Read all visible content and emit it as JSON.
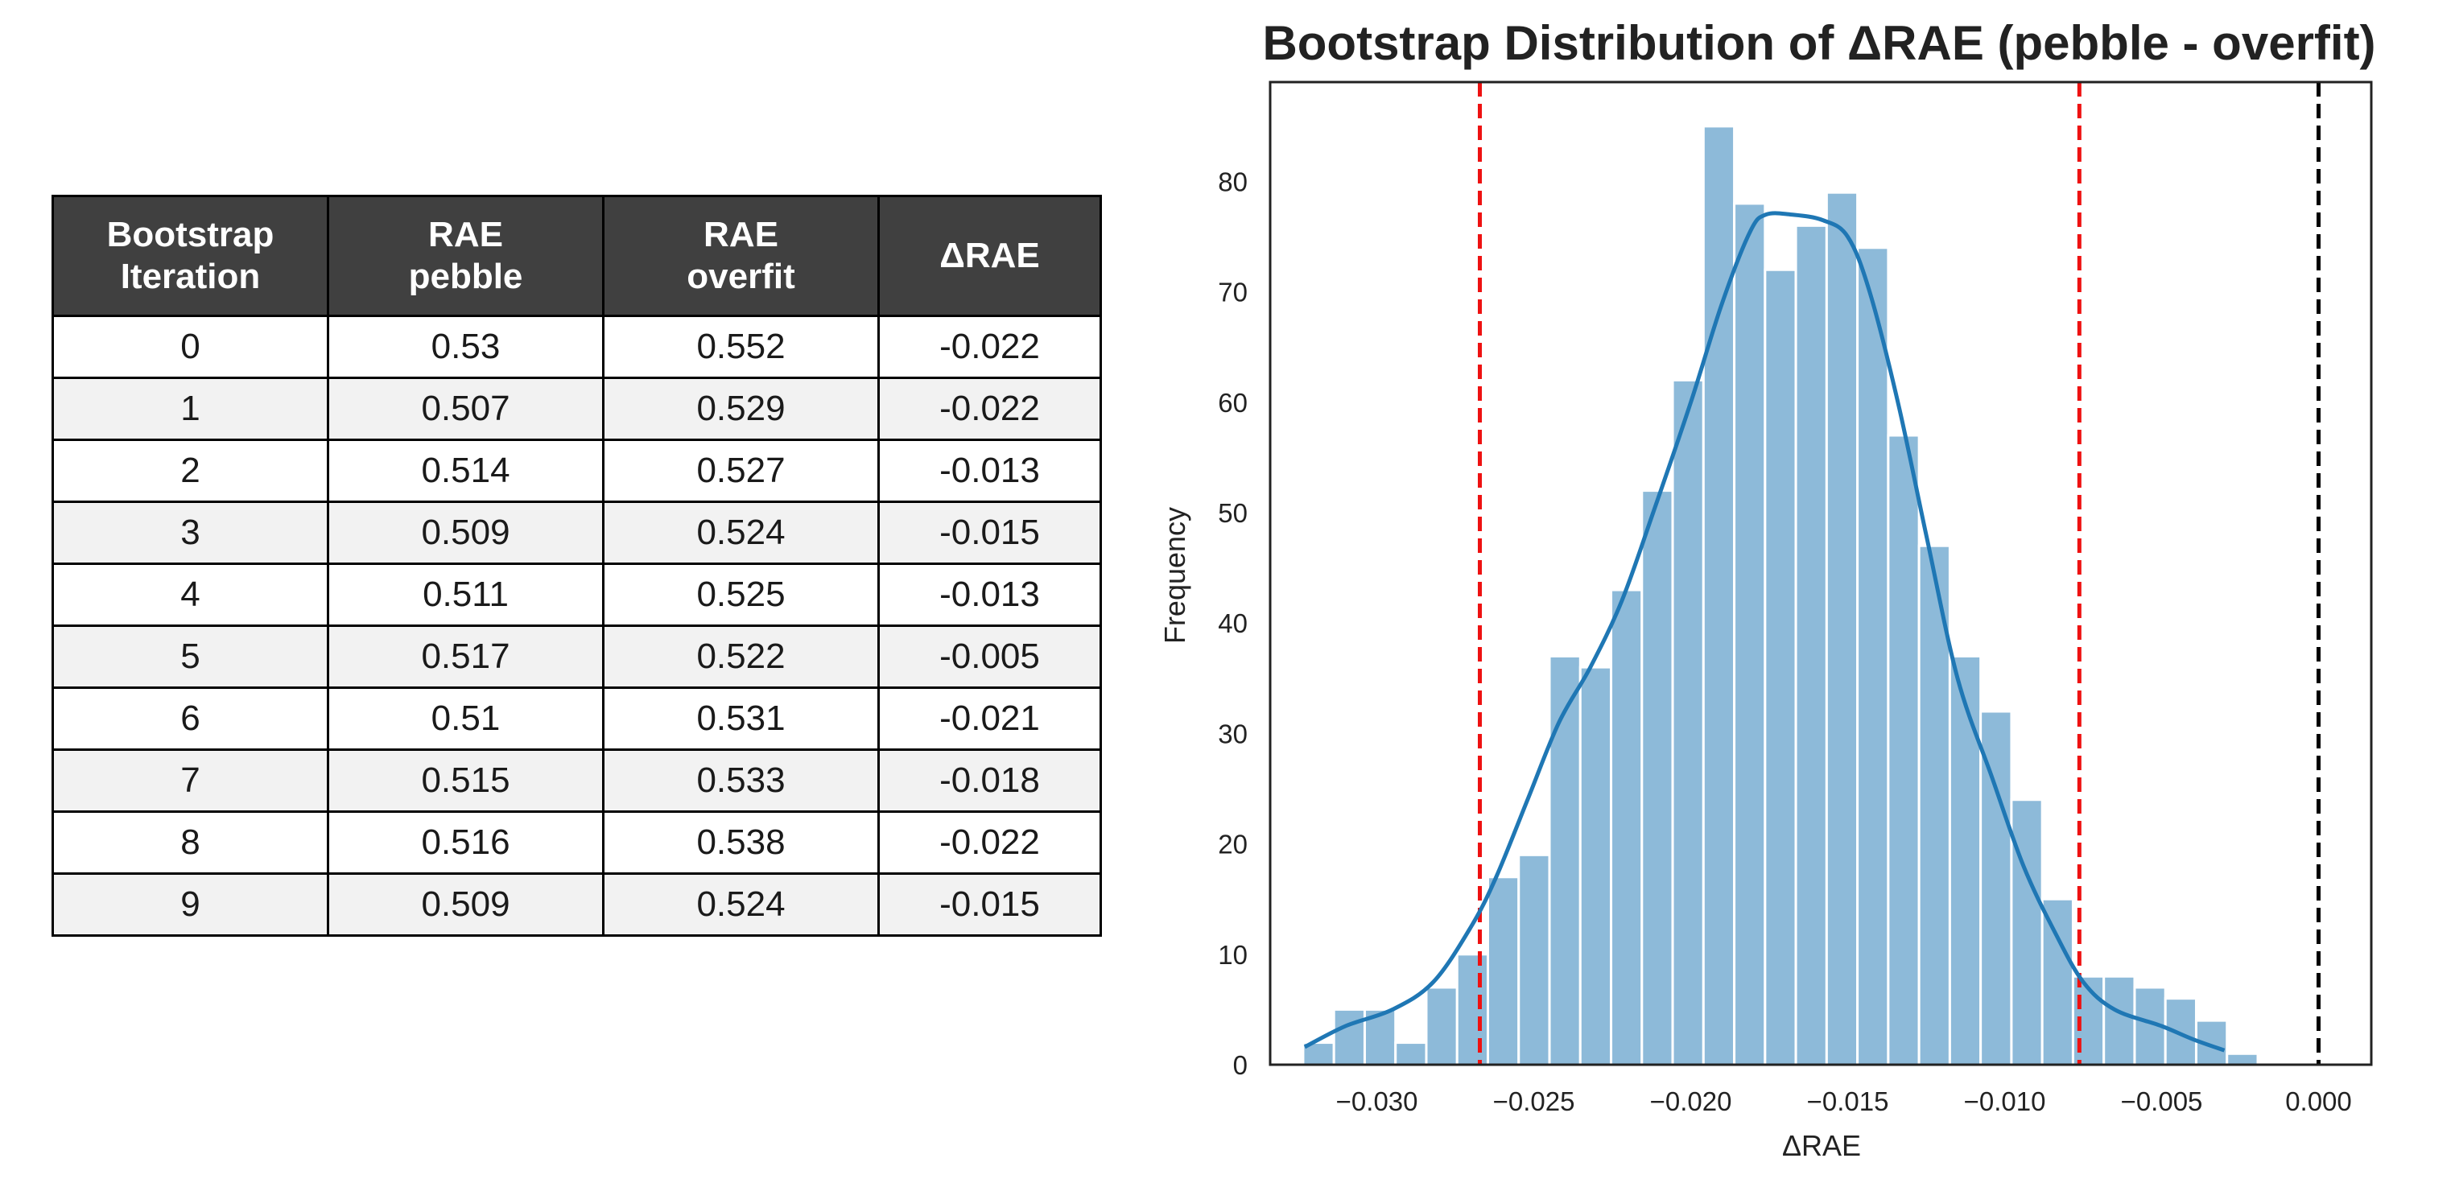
{
  "table": {
    "headers": [
      [
        "Bootstrap",
        "Iteration"
      ],
      [
        "RAE",
        "pebble"
      ],
      [
        "RAE",
        "overfit"
      ],
      [
        "ΔRAE"
      ]
    ],
    "rows": [
      [
        "0",
        "0.53",
        "0.552",
        "-0.022"
      ],
      [
        "1",
        "0.507",
        "0.529",
        "-0.022"
      ],
      [
        "2",
        "0.514",
        "0.527",
        "-0.013"
      ],
      [
        "3",
        "0.509",
        "0.524",
        "-0.015"
      ],
      [
        "4",
        "0.511",
        "0.525",
        "-0.013"
      ],
      [
        "5",
        "0.517",
        "0.522",
        "-0.005"
      ],
      [
        "6",
        "0.51",
        "0.531",
        "-0.021"
      ],
      [
        "7",
        "0.515",
        "0.533",
        "-0.018"
      ],
      [
        "8",
        "0.516",
        "0.538",
        "-0.022"
      ],
      [
        "9",
        "0.509",
        "0.524",
        "-0.015"
      ]
    ],
    "header_bg": "#404040",
    "header_text_color": "#ffffff",
    "stripe_color": "#f2f2f2"
  },
  "chart_data": {
    "type": "histogram",
    "title": "Bootstrap Distribution of ΔRAE (pebble - overfit)",
    "xlabel": "ΔRAE",
    "ylabel": "Frequency",
    "xlim": [
      -0.0334,
      0.00168
    ],
    "ylim": [
      0,
      89
    ],
    "xticks": [
      -0.03,
      -0.025,
      -0.02,
      -0.015,
      -0.01,
      -0.005,
      0.0
    ],
    "xtick_labels": [
      "−0.030",
      "−0.025",
      "−0.020",
      "−0.015",
      "−0.010",
      "−0.005",
      "0.000"
    ],
    "yticks": [
      0,
      10,
      20,
      30,
      40,
      50,
      60,
      70,
      80
    ],
    "bin_start": -0.03235,
    "bin_width": 0.0009811,
    "counts": [
      2,
      5,
      5,
      2,
      7,
      10,
      17,
      19,
      37,
      36,
      43,
      52,
      62,
      85,
      78,
      72,
      76,
      79,
      74,
      57,
      47,
      37,
      32,
      24,
      15,
      8,
      8,
      7,
      6,
      4,
      1
    ],
    "bar_color": "#8dbad9",
    "kde": {
      "color": "#1f77b4",
      "points": [
        [
          -0.0323,
          1.6
        ],
        [
          -0.031,
          3.5
        ],
        [
          -0.0295,
          5.0
        ],
        [
          -0.0282,
          7.5
        ],
        [
          -0.027,
          12.5
        ],
        [
          -0.0262,
          17.0
        ],
        [
          -0.0252,
          24.0
        ],
        [
          -0.0242,
          31.0
        ],
        [
          -0.0232,
          36.0
        ],
        [
          -0.0222,
          42.0
        ],
        [
          -0.0212,
          50.0
        ],
        [
          -0.02,
          60.0
        ],
        [
          -0.019,
          69.0
        ],
        [
          -0.0181,
          75.5
        ],
        [
          -0.0176,
          77.0
        ],
        [
          -0.0168,
          77.0
        ],
        [
          -0.0158,
          76.5
        ],
        [
          -0.015,
          75.0
        ],
        [
          -0.0143,
          70.0
        ],
        [
          -0.0134,
          60.0
        ],
        [
          -0.0125,
          48.0
        ],
        [
          -0.0115,
          35.0
        ],
        [
          -0.0104,
          26.0
        ],
        [
          -0.0094,
          18.0
        ],
        [
          -0.0084,
          12.0
        ],
        [
          -0.0075,
          7.5
        ],
        [
          -0.0065,
          5.0
        ],
        [
          -0.005,
          3.5
        ],
        [
          -0.004,
          2.3
        ],
        [
          -0.003,
          1.3
        ]
      ]
    },
    "vlines": [
      {
        "x": -0.02672,
        "color": "#ee1111",
        "label": ""
      },
      {
        "x": -0.00762,
        "color": "#ee1111",
        "label": ""
      },
      {
        "x": 0.0,
        "color": "#000000",
        "label": ""
      }
    ],
    "grid": false,
    "legend": "none"
  }
}
